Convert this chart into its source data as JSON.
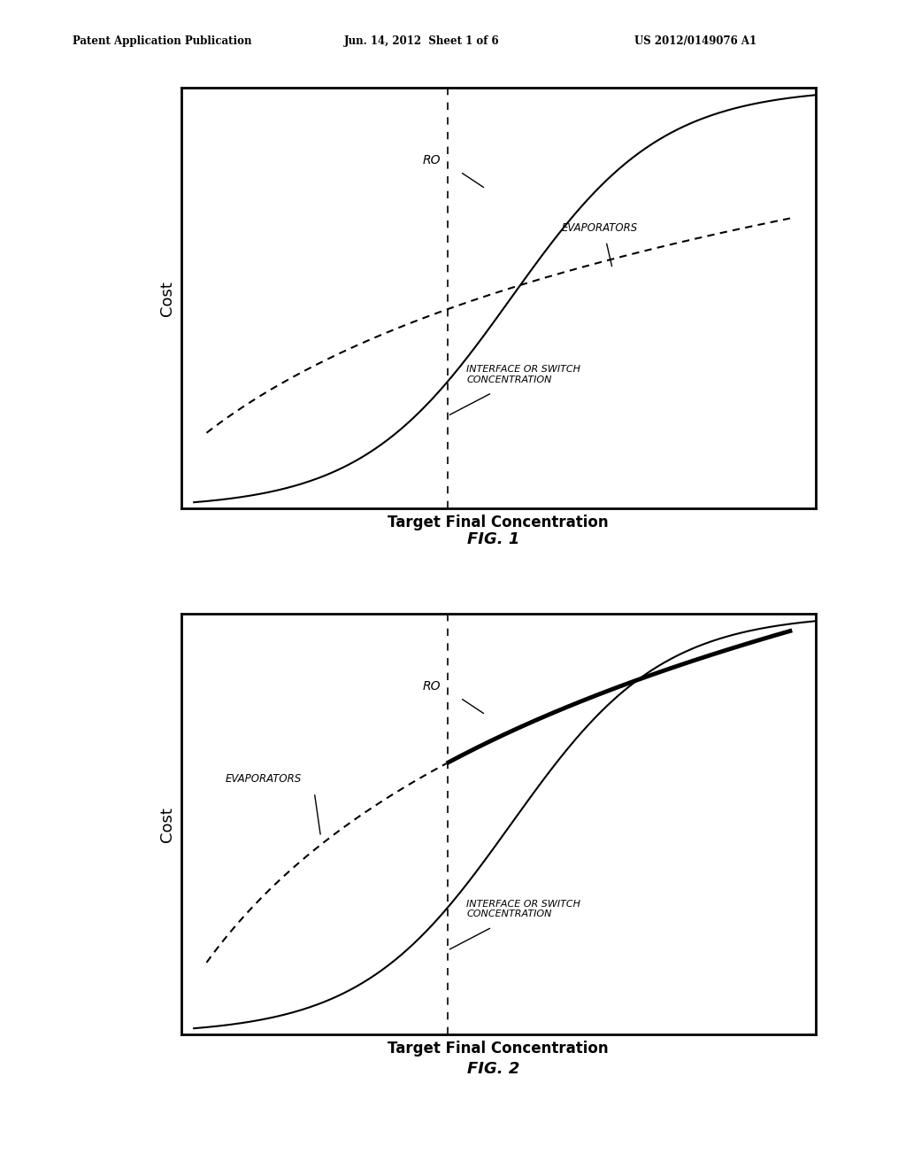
{
  "header_left": "Patent Application Publication",
  "header_center": "Jun. 14, 2012  Sheet 1 of 6",
  "header_right": "US 2012/0149076 A1",
  "fig1_title": "FIG. 1",
  "fig2_title": "FIG. 2",
  "xlabel": "Target Final Concentration",
  "ylabel": "Cost",
  "ro_label": "RO",
  "evaporators_label": "EVAPORATORS",
  "interface_label": "INTERFACE OR SWITCH\nCONCENTRATION",
  "bg_color": "#ffffff"
}
